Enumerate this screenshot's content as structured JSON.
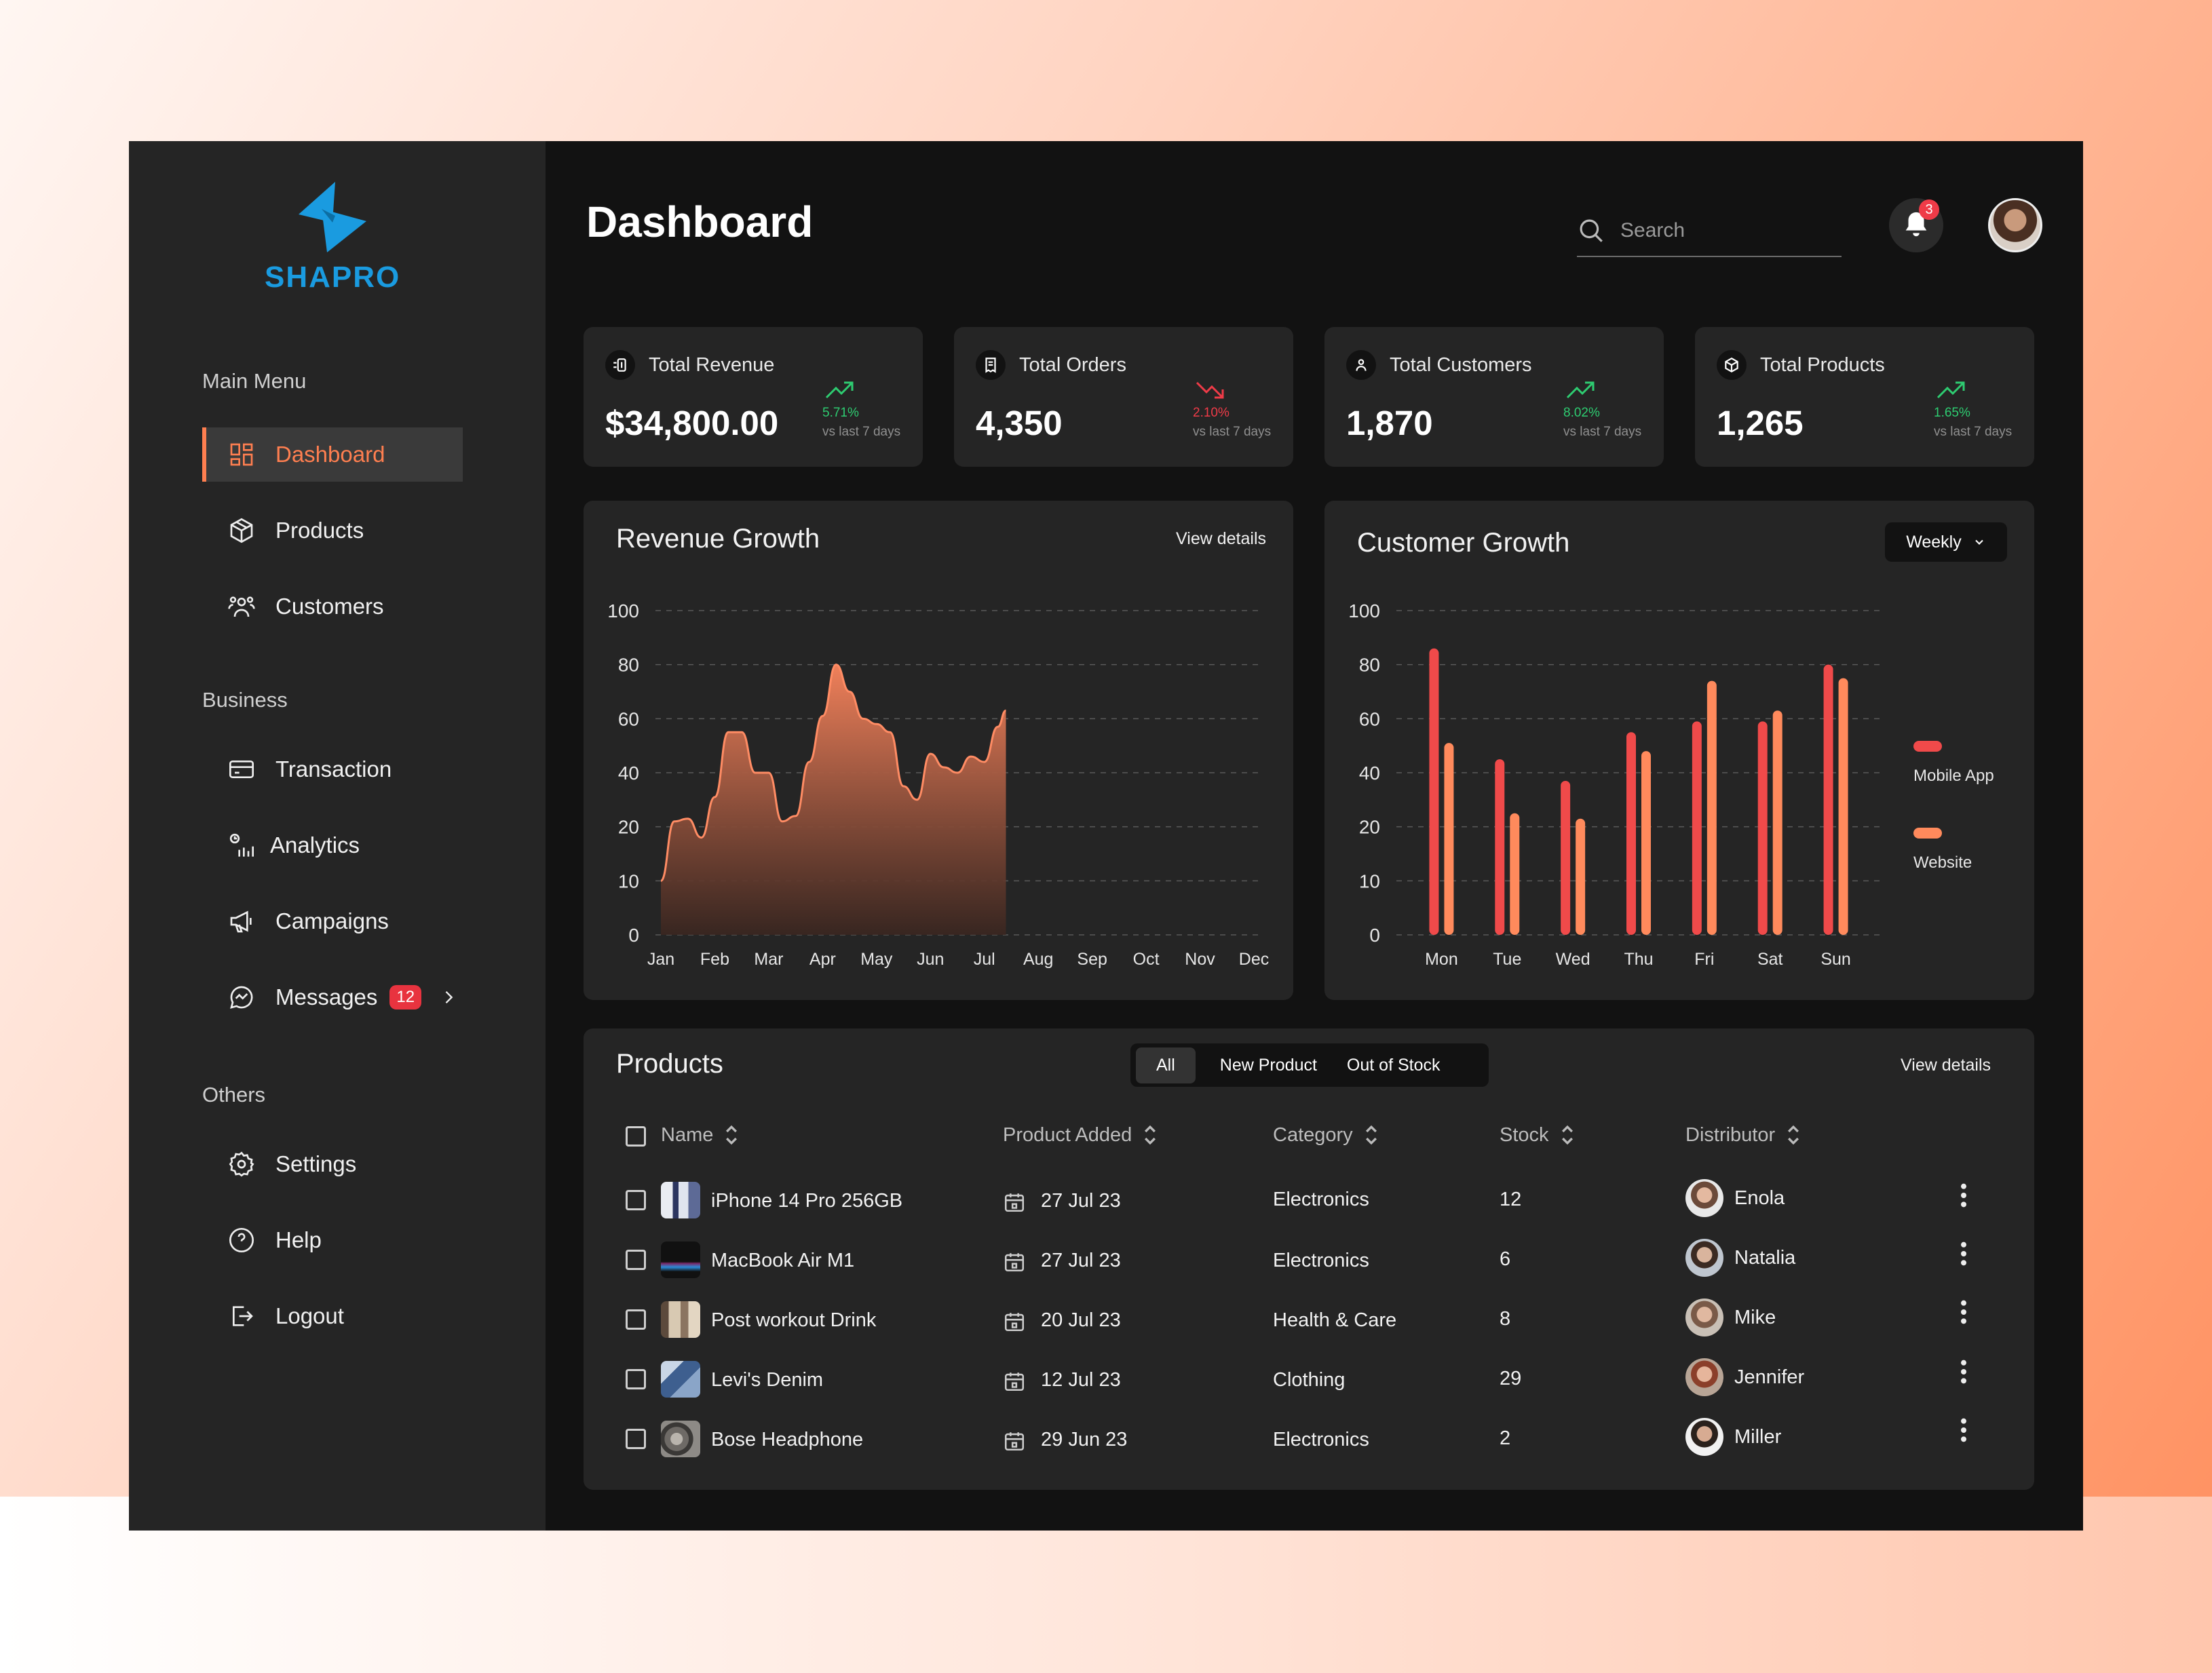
{
  "brand": {
    "name": "SHAPRO"
  },
  "sidebar": {
    "sections": [
      {
        "label": "Main Menu"
      },
      {
        "label": "Business"
      },
      {
        "label": "Others"
      }
    ],
    "items": [
      {
        "label": "Dashboard",
        "icon": "grid-icon",
        "active": true
      },
      {
        "label": "Products",
        "icon": "box-icon"
      },
      {
        "label": "Customers",
        "icon": "users-icon"
      },
      {
        "label": "Transaction",
        "icon": "card-icon"
      },
      {
        "label": "Analytics",
        "icon": "analytics-icon"
      },
      {
        "label": "Campaigns",
        "icon": "megaphone-icon"
      },
      {
        "label": "Messages",
        "icon": "chat-icon",
        "badge": "12"
      },
      {
        "label": "Settings",
        "icon": "gear-icon"
      },
      {
        "label": "Help",
        "icon": "help-icon"
      },
      {
        "label": "Logout",
        "icon": "logout-icon"
      }
    ]
  },
  "header": {
    "title": "Dashboard",
    "search_placeholder": "Search",
    "notifications": "3"
  },
  "stats": [
    {
      "label": "Total Revenue",
      "value": "$34,800.00",
      "pct": "5.71%",
      "trend": "up",
      "sub": "vs last 7 days"
    },
    {
      "label": "Total Orders",
      "value": "4,350",
      "pct": "2.10%",
      "trend": "down",
      "sub": "vs last 7 days"
    },
    {
      "label": "Total Customers",
      "value": "1,870",
      "pct": "8.02%",
      "trend": "up",
      "sub": "vs last 7 days"
    },
    {
      "label": "Total Products",
      "value": "1,265",
      "pct": "1.65%",
      "trend": "up",
      "sub": "vs last 7 days"
    }
  ],
  "revenue_card": {
    "title": "Revenue Growth",
    "link": "View details"
  },
  "customer_card": {
    "title": "Customer Growth",
    "filter": "Weekly",
    "legend": [
      "Mobile App",
      "Website"
    ]
  },
  "products": {
    "title": "Products",
    "tabs": [
      "All",
      "New Product",
      "Out of Stock"
    ],
    "link": "View details",
    "columns": [
      "Name",
      "Product Added",
      "Category",
      "Stock",
      "Distributor"
    ],
    "rows": [
      {
        "name": "iPhone 14 Pro 256GB",
        "added": "27 Jul 23",
        "category": "Electronics",
        "stock": "12",
        "distributor": "Enola"
      },
      {
        "name": "MacBook Air M1",
        "added": "27 Jul 23",
        "category": "Electronics",
        "stock": "6",
        "distributor": "Natalia"
      },
      {
        "name": "Post workout Drink",
        "added": "20 Jul 23",
        "category": "Health & Care",
        "stock": "8",
        "distributor": "Mike"
      },
      {
        "name": "Levi's Denim",
        "added": "12 Jul 23",
        "category": "Clothing",
        "stock": "29",
        "distributor": "Jennifer"
      },
      {
        "name": "Bose Headphone",
        "added": "29 Jun 23",
        "category": "Electronics",
        "stock": "2",
        "distributor": "Miller"
      }
    ]
  },
  "colors": {
    "accent": "#ff7f50",
    "mobile": "#f04a4a",
    "website": "#ff8a5c",
    "up": "#2ecc71",
    "down": "#ef3b48",
    "brand": "#1a9be0"
  },
  "chart_data": [
    {
      "type": "area",
      "title": "Revenue Growth",
      "categories": [
        "Jan",
        "Feb",
        "Mar",
        "Apr",
        "May",
        "Jun",
        "Jul",
        "Aug",
        "Sep",
        "Oct",
        "Nov",
        "Dec"
      ],
      "x": [
        0,
        0.25,
        0.5,
        0.75,
        1,
        1.25,
        1.5,
        1.75,
        2,
        2.25,
        2.5,
        2.75,
        3,
        3.25,
        3.5,
        3.75,
        4,
        4.25,
        4.5,
        4.75,
        5,
        5.25,
        5.5,
        5.75,
        6,
        6.25,
        6.4
      ],
      "values": [
        10,
        22,
        23,
        18,
        31,
        55,
        55,
        40,
        40,
        22,
        24,
        44,
        61,
        80,
        70,
        60,
        58,
        55,
        35,
        30,
        47,
        42,
        40,
        46,
        44,
        57,
        63
      ],
      "yticks": [
        0,
        10,
        20,
        40,
        60,
        80,
        100
      ],
      "ylim": [
        0,
        100
      ],
      "grid": true
    },
    {
      "type": "bar",
      "title": "Customer Growth",
      "categories": [
        "Mon",
        "Tue",
        "Wed",
        "Thu",
        "Fri",
        "Sat",
        "Sun"
      ],
      "series": [
        {
          "name": "Mobile App",
          "values": [
            86,
            45,
            37,
            55,
            59,
            59,
            80
          ]
        },
        {
          "name": "Website",
          "values": [
            51,
            25,
            23,
            48,
            74,
            63,
            75
          ]
        }
      ],
      "yticks": [
        0,
        10,
        20,
        40,
        60,
        80,
        100
      ],
      "ylim": [
        0,
        100
      ],
      "grid": true,
      "legend": "right"
    }
  ]
}
